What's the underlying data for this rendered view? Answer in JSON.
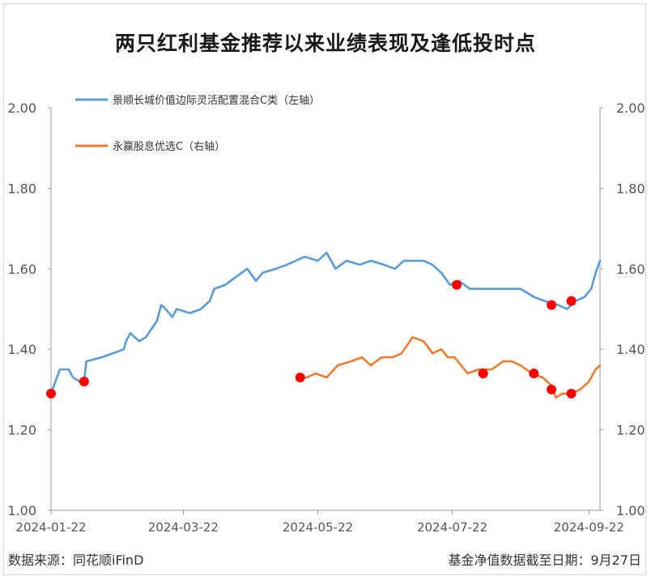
{
  "title": "两只红利基金推荐以来业绩表现及逢低投时点",
  "footer": {
    "source": "数据来源：同花顺iFinD",
    "cutoff": "基金净值数据截至日期：9月27日"
  },
  "colors": {
    "series_left": "#5b9bd5",
    "series_right": "#ed7d31",
    "marker": "#ff0000",
    "axis": "#999999"
  },
  "chart_data": {
    "type": "line",
    "x_type": "date",
    "x_ticks": [
      "2024-01-22",
      "2024-03-22",
      "2024-05-22",
      "2024-07-22",
      "2024-09-22"
    ],
    "xlim": [
      "2024-01-22",
      "2024-09-27"
    ],
    "y_left": {
      "ylim": [
        1.0,
        2.0
      ],
      "ticks": [
        "1.00",
        "1.20",
        "1.40",
        "1.60",
        "1.80",
        "2.00"
      ]
    },
    "y_right": {
      "ylim": [
        1.0,
        2.0
      ],
      "ticks": [
        "1.00",
        "1.20",
        "1.40",
        "1.60",
        "1.80",
        "2.00"
      ]
    },
    "legend_position": "top-left",
    "series": [
      {
        "name": "景顺长城价值边际灵活配置混合C类（左轴）",
        "axis": "left",
        "points": [
          [
            "2024-01-22",
            1.29
          ],
          [
            "2024-01-24",
            1.32
          ],
          [
            "2024-01-26",
            1.35
          ],
          [
            "2024-01-30",
            1.35
          ],
          [
            "2024-02-01",
            1.33
          ],
          [
            "2024-02-04",
            1.32
          ],
          [
            "2024-02-06",
            1.32
          ],
          [
            "2024-02-07",
            1.37
          ],
          [
            "2024-02-14",
            1.38
          ],
          [
            "2024-02-24",
            1.4
          ],
          [
            "2024-02-25",
            1.42
          ],
          [
            "2024-02-27",
            1.44
          ],
          [
            "2024-03-02",
            1.42
          ],
          [
            "2024-03-05",
            1.43
          ],
          [
            "2024-03-10",
            1.47
          ],
          [
            "2024-03-12",
            1.51
          ],
          [
            "2024-03-14",
            1.5
          ],
          [
            "2024-03-17",
            1.48
          ],
          [
            "2024-03-19",
            1.5
          ],
          [
            "2024-03-25",
            1.49
          ],
          [
            "2024-03-30",
            1.5
          ],
          [
            "2024-04-03",
            1.52
          ],
          [
            "2024-04-05",
            1.55
          ],
          [
            "2024-04-10",
            1.56
          ],
          [
            "2024-04-15",
            1.58
          ],
          [
            "2024-04-20",
            1.6
          ],
          [
            "2024-04-24",
            1.57
          ],
          [
            "2024-04-27",
            1.59
          ],
          [
            "2024-05-03",
            1.6
          ],
          [
            "2024-05-08",
            1.61
          ],
          [
            "2024-05-12",
            1.62
          ],
          [
            "2024-05-16",
            1.63
          ],
          [
            "2024-05-22",
            1.62
          ],
          [
            "2024-05-26",
            1.64
          ],
          [
            "2024-05-30",
            1.6
          ],
          [
            "2024-06-04",
            1.62
          ],
          [
            "2024-06-10",
            1.61
          ],
          [
            "2024-06-15",
            1.62
          ],
          [
            "2024-06-21",
            1.61
          ],
          [
            "2024-06-26",
            1.6
          ],
          [
            "2024-06-30",
            1.62
          ],
          [
            "2024-07-05",
            1.62
          ],
          [
            "2024-07-09",
            1.62
          ],
          [
            "2024-07-13",
            1.61
          ],
          [
            "2024-07-17",
            1.59
          ],
          [
            "2024-07-21",
            1.56
          ],
          [
            "2024-07-25",
            1.57
          ],
          [
            "2024-07-30",
            1.55
          ],
          [
            "2024-08-04",
            1.55
          ],
          [
            "2024-08-10",
            1.55
          ],
          [
            "2024-08-16",
            1.55
          ],
          [
            "2024-08-22",
            1.55
          ],
          [
            "2024-08-28",
            1.53
          ],
          [
            "2024-09-02",
            1.52
          ],
          [
            "2024-09-08",
            1.51
          ],
          [
            "2024-09-12",
            1.5
          ],
          [
            "2024-09-16",
            1.52
          ],
          [
            "2024-09-20",
            1.53
          ],
          [
            "2024-09-23",
            1.55
          ],
          [
            "2024-09-25",
            1.59
          ],
          [
            "2024-09-27",
            1.62
          ]
        ]
      },
      {
        "name": "永赢股息优选C（右轴）",
        "axis": "right",
        "points": [
          [
            "2024-05-14",
            1.33
          ],
          [
            "2024-05-17",
            1.33
          ],
          [
            "2024-05-21",
            1.34
          ],
          [
            "2024-05-26",
            1.33
          ],
          [
            "2024-05-31",
            1.36
          ],
          [
            "2024-06-06",
            1.37
          ],
          [
            "2024-06-11",
            1.38
          ],
          [
            "2024-06-15",
            1.36
          ],
          [
            "2024-06-20",
            1.38
          ],
          [
            "2024-06-25",
            1.38
          ],
          [
            "2024-06-29",
            1.39
          ],
          [
            "2024-07-04",
            1.43
          ],
          [
            "2024-07-09",
            1.42
          ],
          [
            "2024-07-13",
            1.39
          ],
          [
            "2024-07-17",
            1.4
          ],
          [
            "2024-07-20",
            1.38
          ],
          [
            "2024-07-23",
            1.38
          ],
          [
            "2024-07-29",
            1.34
          ],
          [
            "2024-08-03",
            1.35
          ],
          [
            "2024-08-09",
            1.35
          ],
          [
            "2024-08-14",
            1.37
          ],
          [
            "2024-08-18",
            1.37
          ],
          [
            "2024-08-22",
            1.36
          ],
          [
            "2024-08-27",
            1.34
          ],
          [
            "2024-09-01",
            1.33
          ],
          [
            "2024-09-05",
            1.31
          ],
          [
            "2024-09-07",
            1.28
          ],
          [
            "2024-09-10",
            1.29
          ],
          [
            "2024-09-14",
            1.29
          ],
          [
            "2024-09-18",
            1.3
          ],
          [
            "2024-09-22",
            1.32
          ],
          [
            "2024-09-25",
            1.35
          ],
          [
            "2024-09-27",
            1.36
          ]
        ]
      }
    ],
    "markers": [
      {
        "series": 0,
        "x": "2024-01-22",
        "y": 1.29
      },
      {
        "series": 0,
        "x": "2024-02-06",
        "y": 1.32
      },
      {
        "series": 0,
        "x": "2024-07-24",
        "y": 1.56
      },
      {
        "series": 0,
        "x": "2024-09-05",
        "y": 1.51
      },
      {
        "series": 0,
        "x": "2024-09-14",
        "y": 1.52
      },
      {
        "series": 1,
        "x": "2024-05-14",
        "y": 1.33
      },
      {
        "series": 1,
        "x": "2024-08-05",
        "y": 1.34
      },
      {
        "series": 1,
        "x": "2024-08-28",
        "y": 1.34
      },
      {
        "series": 1,
        "x": "2024-09-05",
        "y": 1.3
      },
      {
        "series": 1,
        "x": "2024-09-14",
        "y": 1.29
      }
    ]
  }
}
